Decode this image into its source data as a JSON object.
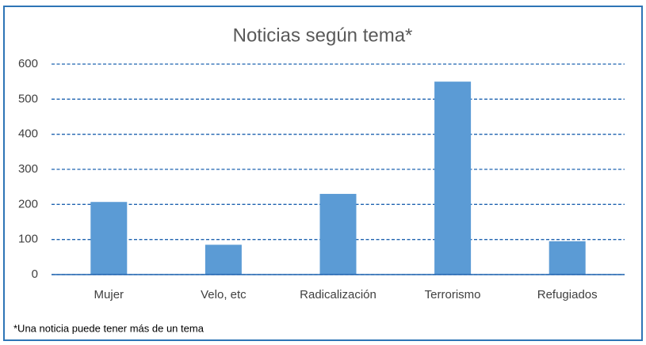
{
  "chart_data": {
    "type": "bar",
    "title": "Noticias según tema*",
    "categories": [
      "Mujer",
      "Velo, etc",
      "Radicalización",
      "Terrorismo",
      "Refugiados"
    ],
    "values": [
      207,
      85,
      230,
      550,
      95
    ],
    "color": "#5b9bd5",
    "ylim": [
      0,
      600
    ],
    "yticks": [
      0,
      100,
      200,
      300,
      400,
      500,
      600
    ],
    "grid": true,
    "annotation": "*Una noticia puede tener más de un tema"
  }
}
